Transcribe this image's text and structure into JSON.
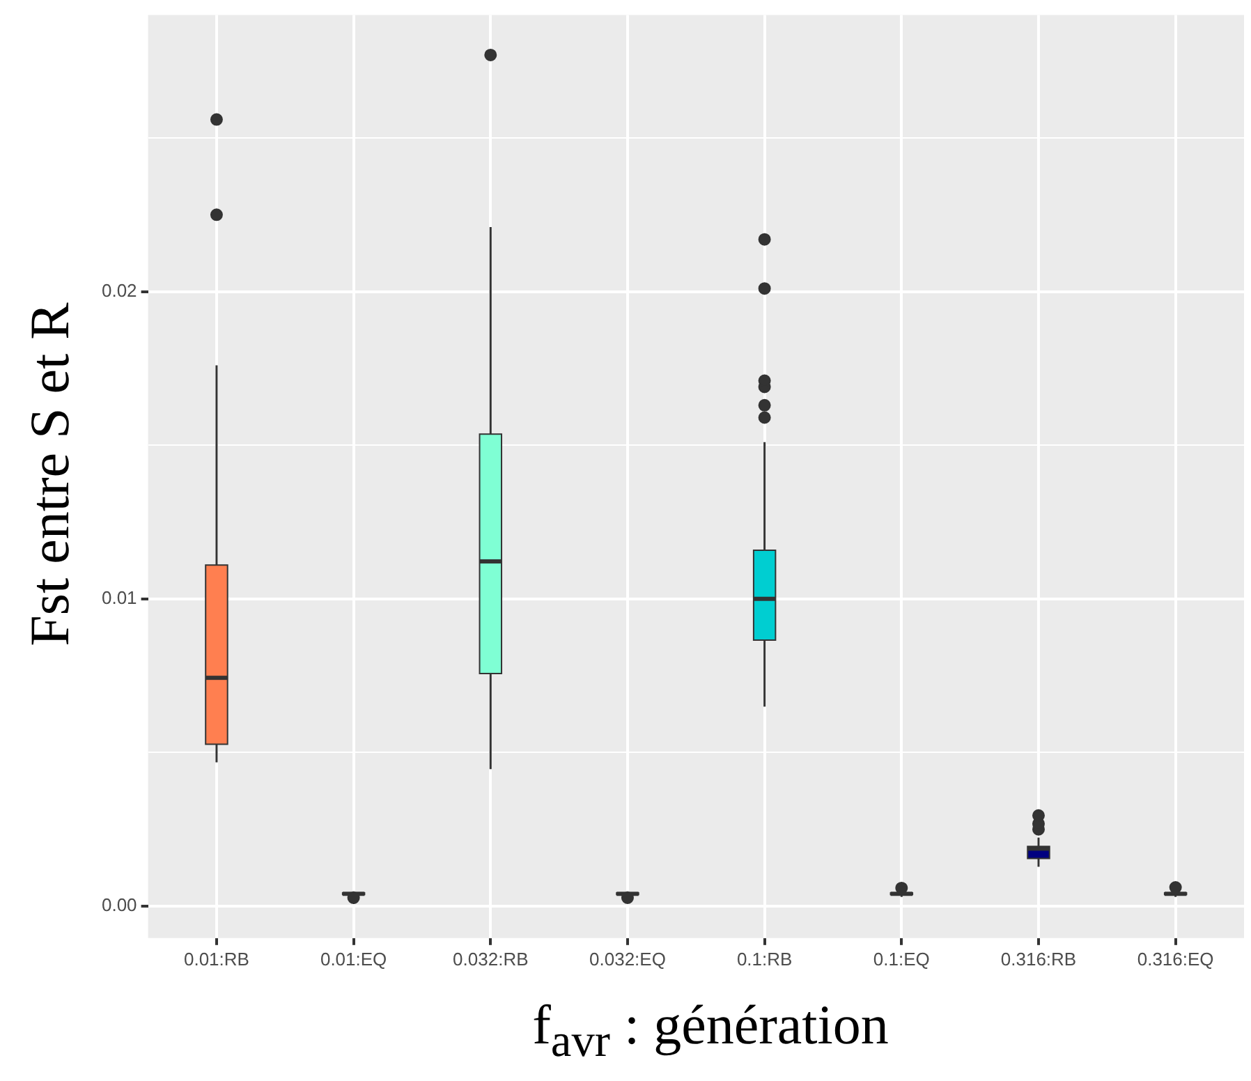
{
  "chart_data": {
    "type": "box",
    "xlabel": "f$_{avr}$ : génération",
    "ylabel": "Fst entre S et R",
    "categories": [
      "0.01:RB",
      "0.01:EQ",
      "0.032:RB",
      "0.032:EQ",
      "0.1:RB",
      "0.1:EQ",
      "0.316:RB",
      "0.316:EQ"
    ],
    "colors": [
      "#ff7f50",
      "#ff7f50",
      "#7fffd4",
      "#7fffd4",
      "#00ced1",
      "#00ced1",
      "#000080",
      "#000080"
    ],
    "boxes": [
      {
        "low": 0.00468,
        "q1": 0.00527,
        "median": 0.00743,
        "q3": 0.0111,
        "high": 0.0176,
        "outliers": [
          0.0225,
          0.0256
        ]
      },
      {
        "low": 0.0003,
        "q1": 0.00038,
        "median": 0.0004,
        "q3": 0.00043,
        "high": 0.00048,
        "outliers": [
          0.00027
        ]
      },
      {
        "low": 0.00446,
        "q1": 0.00757,
        "median": 0.01122,
        "q3": 0.01536,
        "high": 0.0221,
        "outliers": [
          0.0277
        ]
      },
      {
        "low": 0.0003,
        "q1": 0.00038,
        "median": 0.0004,
        "q3": 0.00043,
        "high": 0.00048,
        "outliers": [
          0.00027
        ]
      },
      {
        "low": 0.00649,
        "q1": 0.00866,
        "median": 0.01,
        "q3": 0.01158,
        "high": 0.0151,
        "outliers": [
          0.0159,
          0.0163,
          0.0169,
          0.0171,
          0.0201,
          0.0217
        ]
      },
      {
        "low": 0.0003,
        "q1": 0.00038,
        "median": 0.0004,
        "q3": 0.00043,
        "high": 0.00052,
        "outliers": [
          0.00059
        ]
      },
      {
        "low": 0.00128,
        "q1": 0.00155,
        "median": 0.00187,
        "q3": 0.00194,
        "high": 0.00223,
        "outliers": [
          0.0025,
          0.00268,
          0.00295
        ]
      },
      {
        "low": 0.0003,
        "q1": 0.00038,
        "median": 0.0004,
        "q3": 0.00043,
        "high": 0.00052,
        "outliers": [
          0.00061
        ]
      }
    ],
    "ylim": [
      -0.00104,
      0.029
    ],
    "yticks": [
      {
        "value": 0,
        "label": "0.00"
      },
      {
        "value": 0.005,
        "label": null
      },
      {
        "value": 0.01,
        "label": "0.01"
      },
      {
        "value": 0.015,
        "label": null
      },
      {
        "value": 0.02,
        "label": "0.02"
      },
      {
        "value": 0.025,
        "label": null
      }
    ],
    "grid": true,
    "legend": false
  }
}
